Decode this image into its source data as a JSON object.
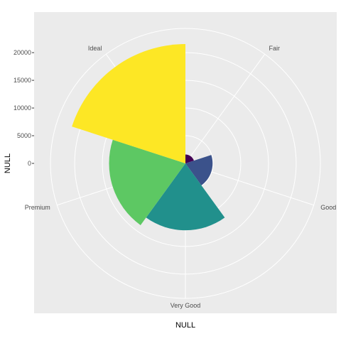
{
  "chart_data": {
    "type": "polar-bar",
    "title": "",
    "xlabel": "NULL",
    "ylabel": "NULL",
    "categories": [
      "Fair",
      "Good",
      "Very Good",
      "Premium",
      "Ideal"
    ],
    "values": [
      1610,
      4906,
      12082,
      13791,
      21551
    ],
    "colors": [
      "#440154",
      "#3B528B",
      "#21908C",
      "#5DC863",
      "#FDE725"
    ],
    "r_ticks": [
      0,
      5000,
      10000,
      15000,
      20000
    ],
    "r_tick_labels": [
      "0",
      "5000",
      "10000",
      "15000",
      "20000"
    ],
    "panel_background": "#EBEBEB",
    "grid_color": "#FFFFFF",
    "grid": true,
    "legend": "none"
  }
}
